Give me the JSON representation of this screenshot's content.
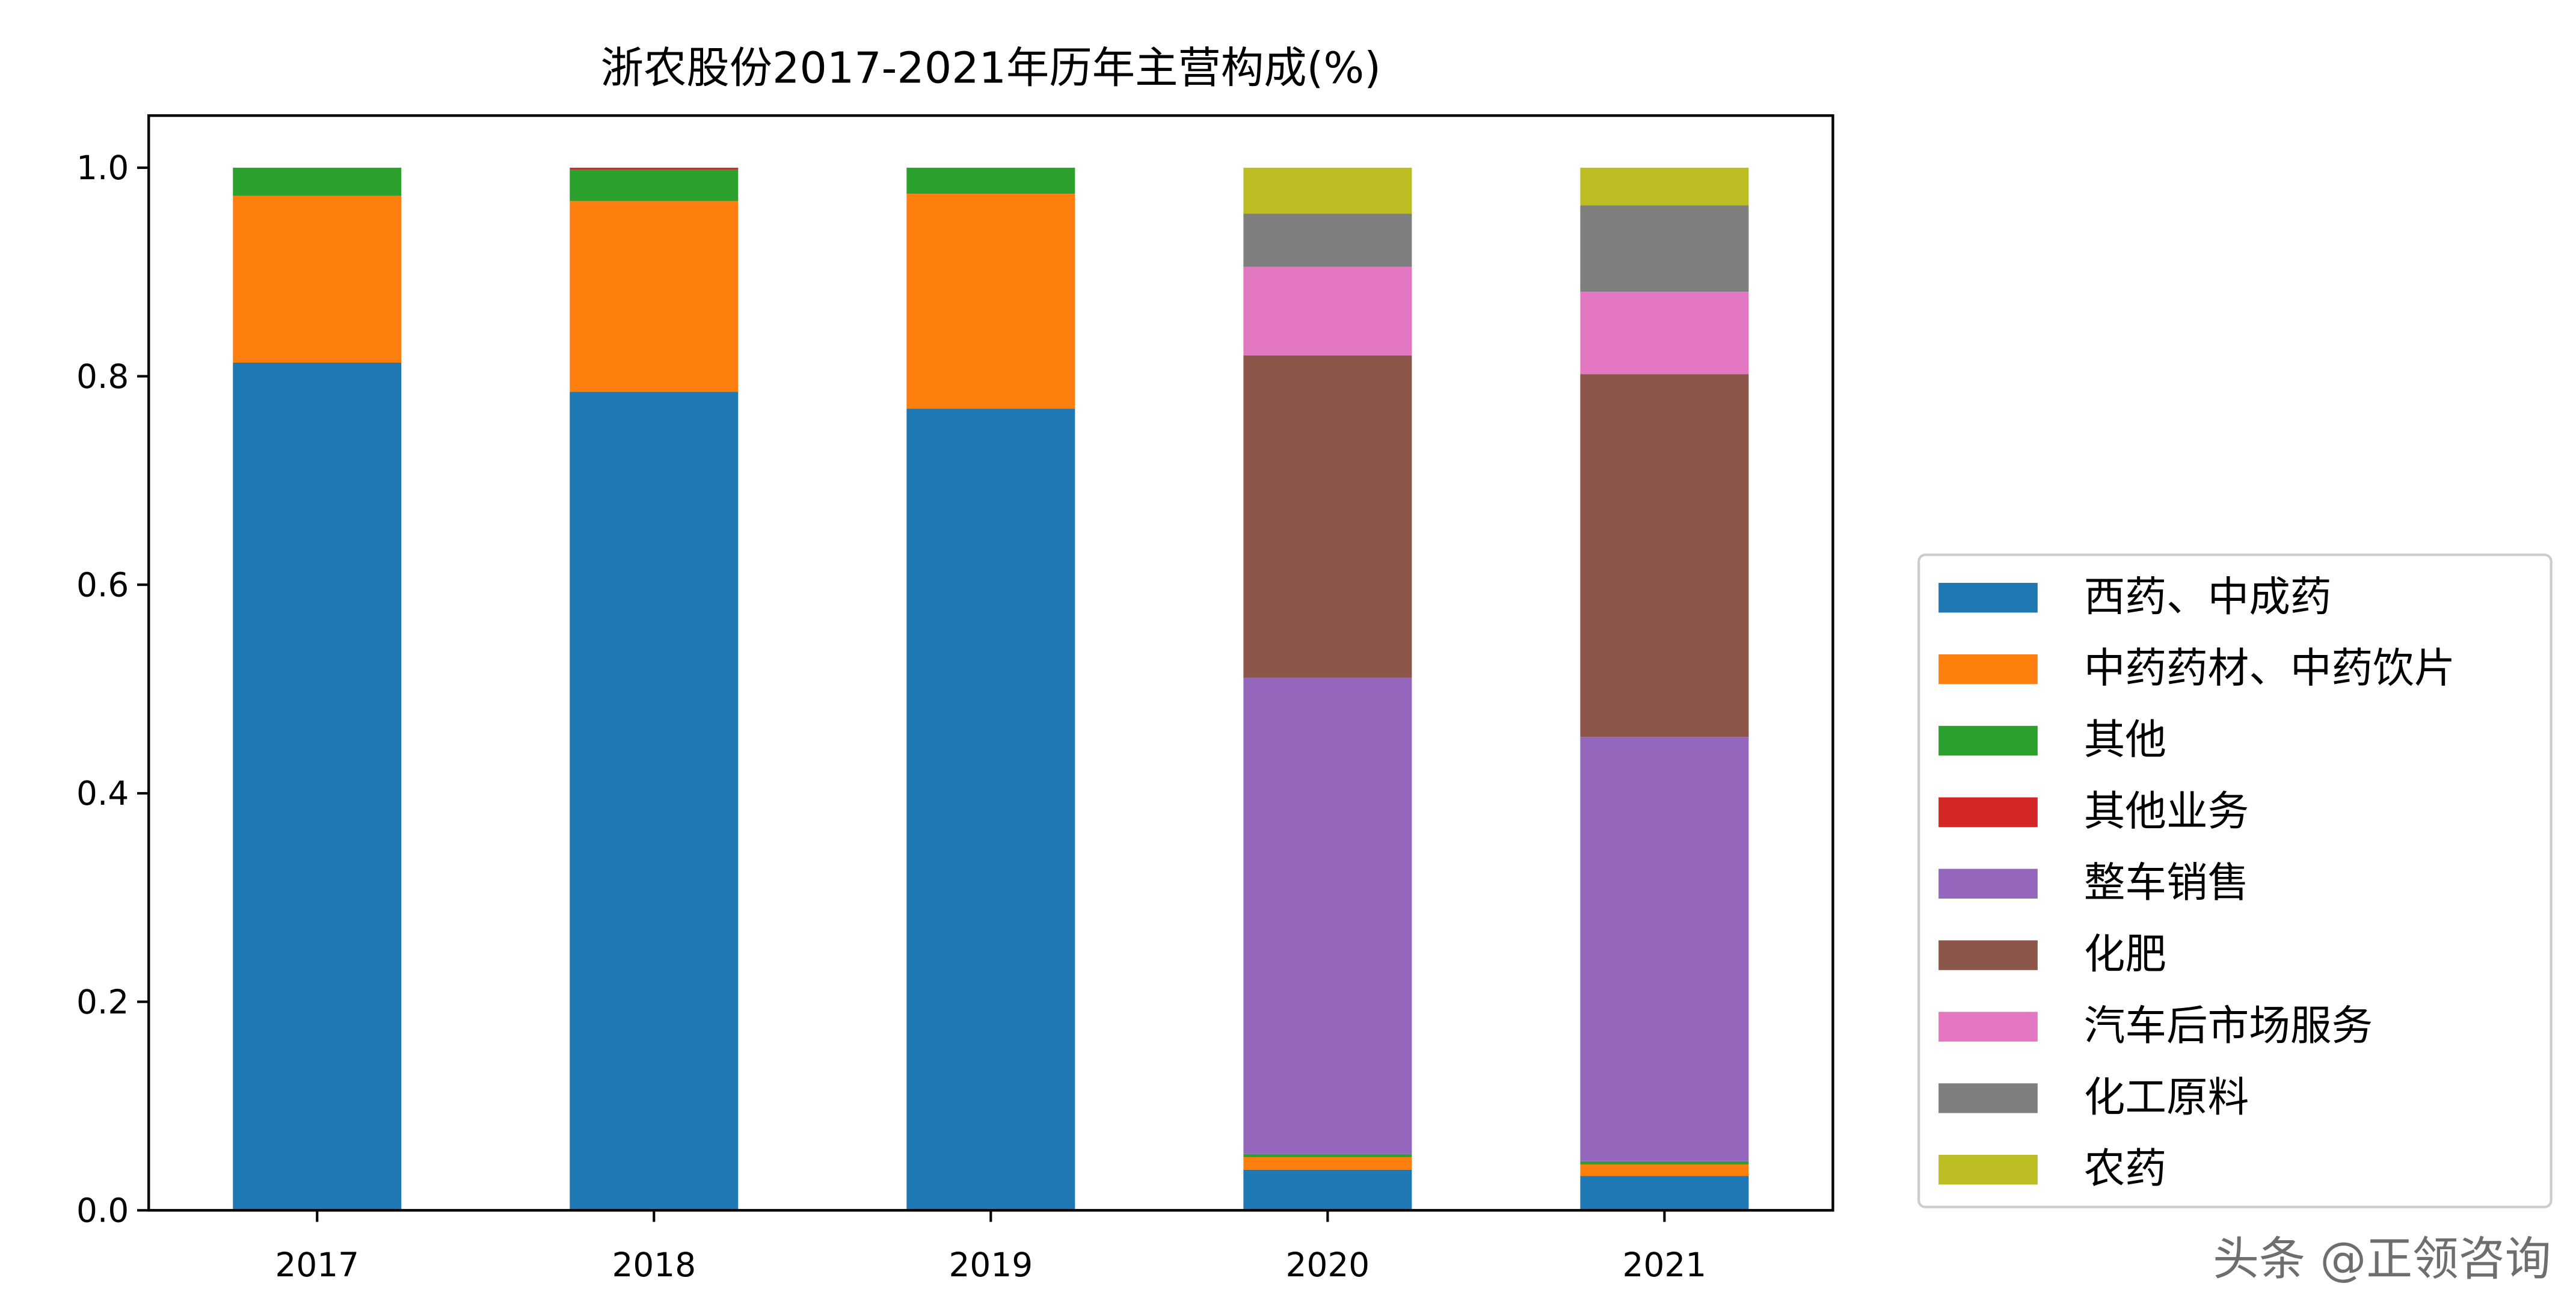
{
  "chart_data": {
    "type": "bar",
    "stacked": true,
    "title": "浙农股份2017-2021年历年主营构成(%)",
    "xlabel": "",
    "ylabel": "",
    "categories": [
      "2017",
      "2018",
      "2019",
      "2020",
      "2021"
    ],
    "ylim": [
      0,
      1.05
    ],
    "yticks": [
      "0.0",
      "0.2",
      "0.4",
      "0.6",
      "0.8",
      "1.0"
    ],
    "grid": false,
    "legend_position": "lower-right-outside",
    "series": [
      {
        "name": "西药、中成药",
        "color": "#1f77b4",
        "values": [
          0.813,
          0.785,
          0.769,
          0.039,
          0.033
        ]
      },
      {
        "name": "中药药材、中药饮片",
        "color": "#ff7f0e",
        "values": [
          0.16,
          0.183,
          0.206,
          0.012,
          0.011
        ]
      },
      {
        "name": "其他",
        "color": "#2ca02c",
        "values": [
          0.027,
          0.03,
          0.025,
          0.003,
          0.003
        ]
      },
      {
        "name": "其他业务",
        "color": "#d62728",
        "values": [
          0,
          0.002,
          0,
          0,
          0
        ]
      },
      {
        "name": "整车销售",
        "color": "#9467bd",
        "values": [
          0,
          0,
          0,
          0.457,
          0.407
        ]
      },
      {
        "name": "化肥",
        "color": "#8c564b",
        "values": [
          0,
          0,
          0,
          0.309,
          0.348
        ]
      },
      {
        "name": "汽车后市场服务",
        "color": "#e377c2",
        "values": [
          0,
          0,
          0,
          0.085,
          0.079
        ]
      },
      {
        "name": "化工原料",
        "color": "#7f7f7f",
        "values": [
          0,
          0,
          0,
          0.051,
          0.083
        ]
      },
      {
        "name": "农药",
        "color": "#bcbd22",
        "values": [
          0,
          0,
          0,
          0.044,
          0.036
        ]
      }
    ]
  },
  "watermark": "头条 @正领咨询"
}
